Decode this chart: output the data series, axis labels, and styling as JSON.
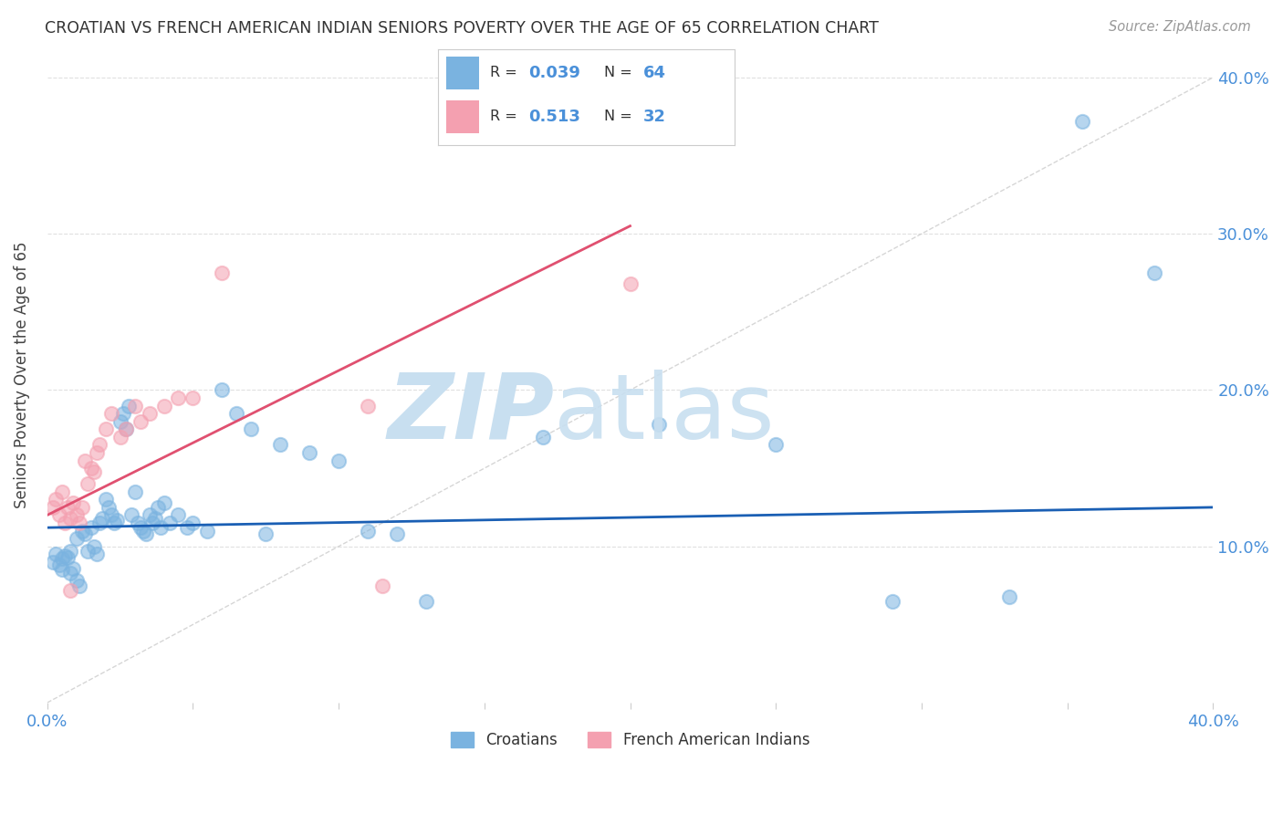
{
  "title": "CROATIAN VS FRENCH AMERICAN INDIAN SENIORS POVERTY OVER THE AGE OF 65 CORRELATION CHART",
  "source": "Source: ZipAtlas.com",
  "ylabel": "Seniors Poverty Over the Age of 65",
  "xlim": [
    0.0,
    0.4
  ],
  "ylim": [
    0.0,
    0.42
  ],
  "yticks": [
    0.1,
    0.2,
    0.3,
    0.4
  ],
  "ytick_labels": [
    "10.0%",
    "20.0%",
    "30.0%",
    "40.0%"
  ],
  "xtick_positions": [
    0.0,
    0.05,
    0.1,
    0.15,
    0.2,
    0.25,
    0.3,
    0.35,
    0.4
  ],
  "xtick_labels": [
    "0.0%",
    "",
    "",
    "",
    "",
    "",
    "",
    "",
    "40.0%"
  ],
  "croatian_color": "#7ab3e0",
  "french_ai_color": "#f4a0b0",
  "trendline_croatian_color": "#1a5fb4",
  "trendline_french_color": "#e05070",
  "diag_line_color": "#cccccc",
  "legend_R_croatian": "0.039",
  "legend_N_croatian": "64",
  "legend_R_french": "0.513",
  "legend_N_french": "32",
  "cro_trendline": [
    0.0,
    0.4,
    0.112,
    0.125
  ],
  "fai_trendline": [
    0.0,
    0.2,
    0.12,
    0.305
  ],
  "croatian_x": [
    0.002,
    0.003,
    0.004,
    0.005,
    0.005,
    0.006,
    0.007,
    0.008,
    0.008,
    0.009,
    0.01,
    0.01,
    0.011,
    0.012,
    0.013,
    0.014,
    0.015,
    0.016,
    0.017,
    0.018,
    0.019,
    0.02,
    0.021,
    0.022,
    0.023,
    0.024,
    0.025,
    0.026,
    0.027,
    0.028,
    0.029,
    0.03,
    0.031,
    0.032,
    0.033,
    0.034,
    0.035,
    0.036,
    0.037,
    0.038,
    0.039,
    0.04,
    0.042,
    0.045,
    0.048,
    0.05,
    0.055,
    0.06,
    0.065,
    0.07,
    0.075,
    0.08,
    0.09,
    0.1,
    0.11,
    0.12,
    0.13,
    0.17,
    0.21,
    0.25,
    0.29,
    0.33,
    0.355,
    0.38
  ],
  "croatian_y": [
    0.09,
    0.095,
    0.088,
    0.092,
    0.085,
    0.094,
    0.093,
    0.097,
    0.083,
    0.086,
    0.105,
    0.078,
    0.075,
    0.11,
    0.108,
    0.097,
    0.112,
    0.1,
    0.095,
    0.115,
    0.118,
    0.13,
    0.125,
    0.12,
    0.115,
    0.117,
    0.18,
    0.185,
    0.175,
    0.19,
    0.12,
    0.135,
    0.115,
    0.112,
    0.11,
    0.108,
    0.12,
    0.115,
    0.118,
    0.125,
    0.112,
    0.128,
    0.115,
    0.12,
    0.112,
    0.115,
    0.11,
    0.2,
    0.185,
    0.175,
    0.108,
    0.165,
    0.16,
    0.155,
    0.11,
    0.108,
    0.065,
    0.17,
    0.178,
    0.165,
    0.065,
    0.068,
    0.372,
    0.275
  ],
  "french_x": [
    0.002,
    0.003,
    0.004,
    0.005,
    0.006,
    0.007,
    0.008,
    0.009,
    0.01,
    0.011,
    0.012,
    0.013,
    0.014,
    0.015,
    0.016,
    0.017,
    0.018,
    0.02,
    0.022,
    0.025,
    0.027,
    0.03,
    0.032,
    0.035,
    0.04,
    0.045,
    0.05,
    0.06,
    0.11,
    0.2,
    0.115,
    0.008
  ],
  "french_y": [
    0.125,
    0.13,
    0.12,
    0.135,
    0.115,
    0.125,
    0.118,
    0.128,
    0.12,
    0.115,
    0.125,
    0.155,
    0.14,
    0.15,
    0.148,
    0.16,
    0.165,
    0.175,
    0.185,
    0.17,
    0.175,
    0.19,
    0.18,
    0.185,
    0.19,
    0.195,
    0.195,
    0.275,
    0.19,
    0.268,
    0.075,
    0.072
  ]
}
